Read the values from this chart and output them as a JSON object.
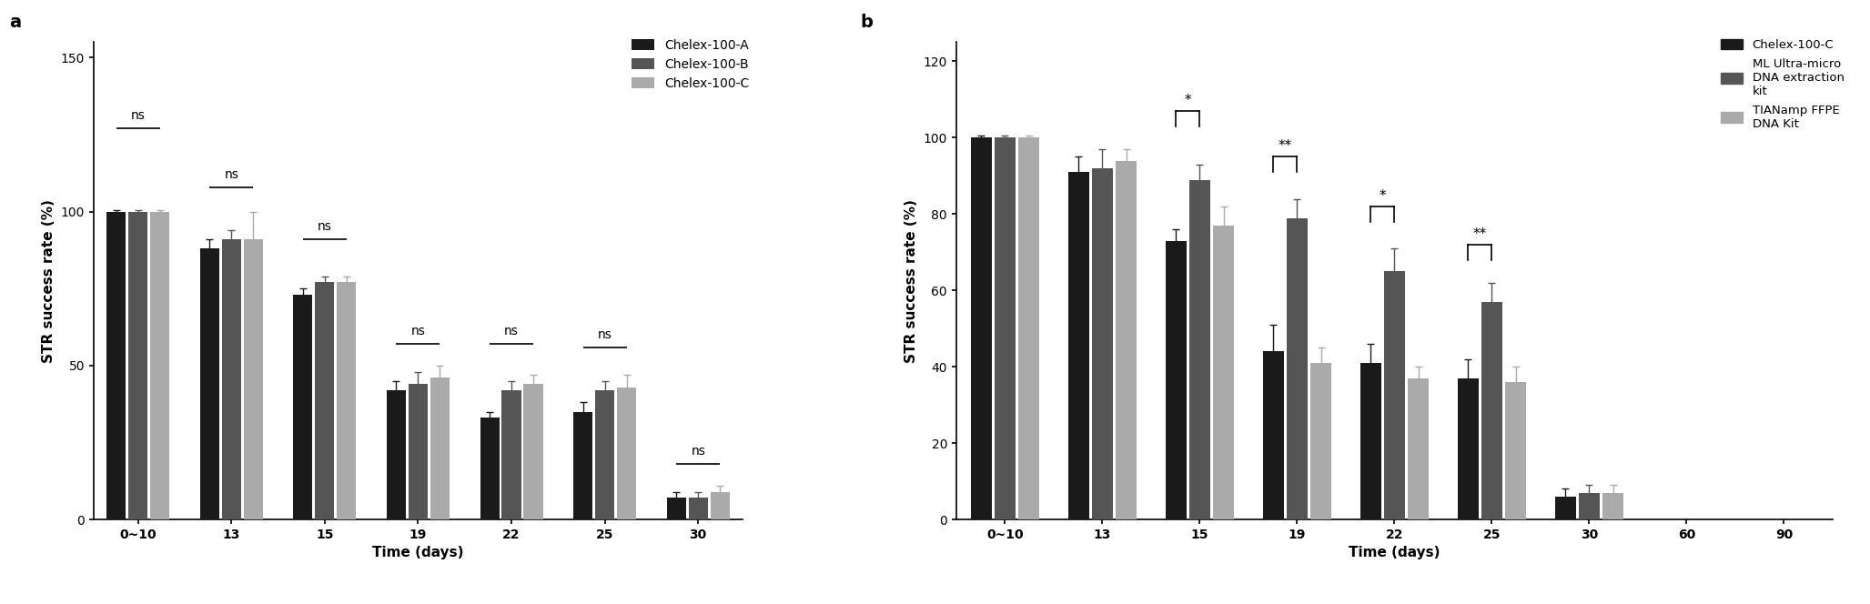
{
  "panel_a": {
    "categories": [
      "0~10",
      "13",
      "15",
      "19",
      "22",
      "25",
      "30"
    ],
    "series_names": [
      "Chelex-100-A",
      "Chelex-100-B",
      "Chelex-100-C"
    ],
    "values": [
      [
        100,
        88,
        73,
        42,
        33,
        35,
        7
      ],
      [
        100,
        91,
        77,
        44,
        42,
        42,
        7
      ],
      [
        100,
        91,
        77,
        46,
        44,
        43,
        9
      ]
    ],
    "errors": [
      [
        0.5,
        3,
        2,
        3,
        2,
        3,
        2
      ],
      [
        0.5,
        3,
        2,
        4,
        3,
        3,
        2
      ],
      [
        0.5,
        9,
        2,
        4,
        3,
        4,
        2
      ]
    ],
    "colors": [
      "#1a1a1a",
      "#555555",
      "#aaaaaa"
    ],
    "ylabel": "STR success rate (%)",
    "xlabel": "Time (days)",
    "ylim": [
      0,
      155
    ],
    "yticks": [
      0,
      50,
      100,
      150
    ],
    "sig_brackets": [
      {
        "cat": 0,
        "y": 127,
        "label": "ns"
      },
      {
        "cat": 1,
        "y": 108,
        "label": "ns"
      },
      {
        "cat": 2,
        "y": 91,
        "label": "ns"
      },
      {
        "cat": 3,
        "y": 57,
        "label": "ns"
      },
      {
        "cat": 4,
        "y": 57,
        "label": "ns"
      },
      {
        "cat": 5,
        "y": 56,
        "label": "ns"
      },
      {
        "cat": 6,
        "y": 18,
        "label": "ns"
      }
    ],
    "panel_label": "a"
  },
  "panel_b": {
    "categories": [
      "0~10",
      "13",
      "15",
      "19",
      "22",
      "25",
      "30",
      "60",
      "90"
    ],
    "active_cats": [
      0,
      1,
      2,
      3,
      4,
      5,
      6
    ],
    "series_names": [
      "Chelex-100-C",
      "ML Ultra-micro\nDNA extraction\nkit",
      "TIANamp FFPE\nDNA Kit"
    ],
    "values": [
      [
        100,
        91,
        73,
        44,
        41,
        37,
        6
      ],
      [
        100,
        92,
        89,
        79,
        65,
        57,
        7
      ],
      [
        100,
        94,
        77,
        41,
        37,
        36,
        7
      ]
    ],
    "errors": [
      [
        0.5,
        4,
        3,
        7,
        5,
        5,
        2
      ],
      [
        0.5,
        5,
        4,
        5,
        6,
        5,
        2
      ],
      [
        0.5,
        3,
        5,
        4,
        3,
        4,
        2
      ]
    ],
    "colors": [
      "#1a1a1a",
      "#555555",
      "#aaaaaa"
    ],
    "ylabel": "STR success rate (%)",
    "xlabel": "Time (days)",
    "ylim": [
      0,
      125
    ],
    "yticks": [
      0,
      20,
      40,
      60,
      80,
      100,
      120
    ],
    "sig_brackets": [
      {
        "cat": 2,
        "series_pair": [
          0,
          1
        ],
        "y": 107,
        "label": "*"
      },
      {
        "cat": 3,
        "series_pair": [
          0,
          1
        ],
        "y": 95,
        "label": "**"
      },
      {
        "cat": 4,
        "series_pair": [
          0,
          1
        ],
        "y": 82,
        "label": "*"
      },
      {
        "cat": 5,
        "series_pair": [
          0,
          1
        ],
        "y": 72,
        "label": "**"
      }
    ],
    "panel_label": "b"
  }
}
